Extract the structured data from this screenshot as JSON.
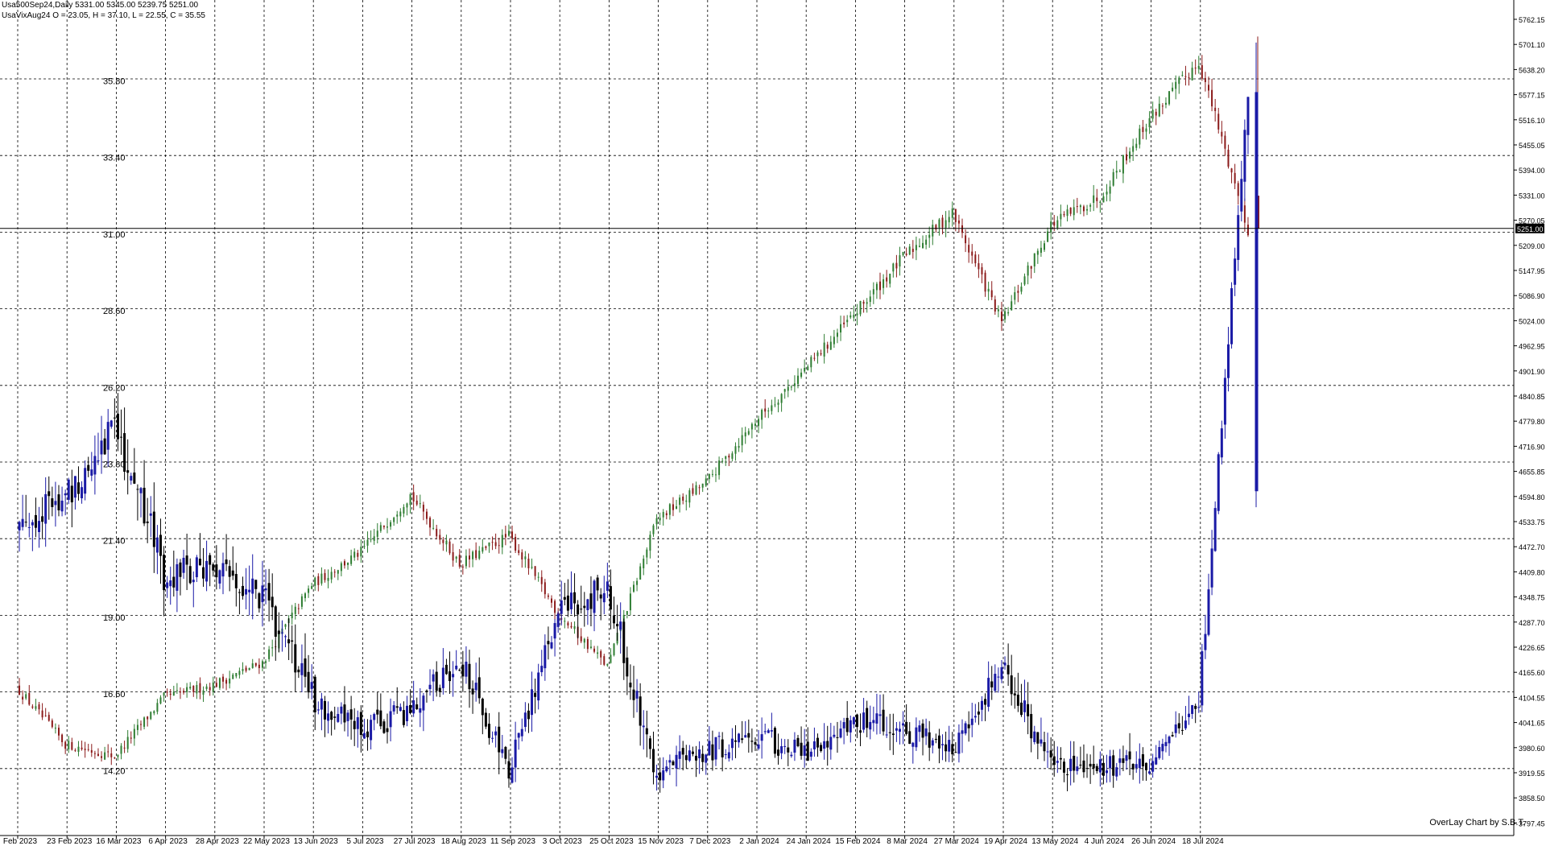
{
  "header": {
    "line1": "Usa500Sep24,Daily  5331.00 5345.00 5239.75 5251.00",
    "line2": "UsaVixAug24 O = 23.05, H = 37.10, L = 22.55, C = 35.55"
  },
  "credit": "OverLay Chart by S.B.T.",
  "colors": {
    "background": "#ffffff",
    "grid": "#000000",
    "spx_up": "#2e7d32",
    "spx_down": "#8b1a1a",
    "vix_up": "#1a1aa6",
    "vix_down": "#000000",
    "price_tag_bg": "#000000",
    "price_tag_text": "#ffffff"
  },
  "chart_data": [
    {
      "type": "candlestick",
      "name": "Usa500Sep24",
      "axis": "right",
      "ylim": [
        3797.45,
        5762.15
      ],
      "ticks": [
        "5762.15",
        "5701.10",
        "5638.20",
        "5577.15",
        "5516.10",
        "5455.05",
        "5394.00",
        "5331.00",
        "5270.05",
        "5209.00",
        "5147.95",
        "5086.90",
        "5024.00",
        "4962.95",
        "4901.90",
        "4840.85",
        "4779.80",
        "4716.90",
        "4655.85",
        "4594.80",
        "4533.75",
        "4472.70",
        "4409.80",
        "4348.75",
        "4287.70",
        "4226.65",
        "4165.60",
        "4104.55",
        "4041.65",
        "3980.60",
        "3919.55",
        "3858.50",
        "3797.45"
      ],
      "current_price": "5251.00",
      "key_points": [
        {
          "date": "Feb 2023",
          "close": 4130
        },
        {
          "date": "23 Feb 2023",
          "close": 3990
        },
        {
          "date": "16 Mar 2023",
          "close": 3960
        },
        {
          "date": "6 Apr 2023",
          "close": 4105
        },
        {
          "date": "28 Apr 2023",
          "close": 4135
        },
        {
          "date": "22 May 2023",
          "close": 4190
        },
        {
          "date": "13 Jun 2023",
          "close": 4380
        },
        {
          "date": "5 Jul 2023",
          "close": 4460
        },
        {
          "date": "27 Jul 2023",
          "close": 4600
        },
        {
          "date": "18 Aug 2023",
          "close": 4430
        },
        {
          "date": "11 Sep 2023",
          "close": 4500
        },
        {
          "date": "3 Oct 2023",
          "close": 4310
        },
        {
          "date": "25 Oct 2023",
          "close": 4180
        },
        {
          "date": "15 Nov 2023",
          "close": 4540
        },
        {
          "date": "7 Dec 2023",
          "close": 4630
        },
        {
          "date": "2 Jan 2024",
          "close": 4780
        },
        {
          "date": "24 Jan 2024",
          "close": 4905
        },
        {
          "date": "15 Feb 2024",
          "close": 5040
        },
        {
          "date": "8 Mar 2024",
          "close": 5180
        },
        {
          "date": "27 Mar 2024",
          "close": 5290
        },
        {
          "date": "19 Apr 2024",
          "close": 5020
        },
        {
          "date": "13 May 2024",
          "close": 5260
        },
        {
          "date": "4 Jun 2024",
          "close": 5330
        },
        {
          "date": "26 Jun 2024",
          "close": 5520
        },
        {
          "date": "18 Jul 2024",
          "close": 5660
        },
        {
          "date": "Aug 2024",
          "close": 5251
        }
      ]
    },
    {
      "type": "candlestick",
      "name": "UsaVixAug24",
      "axis": "left",
      "ylim": [
        11.8,
        38.2
      ],
      "ticks": [
        "35.80",
        "33.40",
        "31.00",
        "28.60",
        "26.20",
        "23.80",
        "21.40",
        "19.00",
        "16.60",
        "14.20"
      ],
      "key_points": [
        {
          "date": "Feb 2023",
          "close": 22.0
        },
        {
          "date": "23 Feb 2023",
          "close": 22.8
        },
        {
          "date": "16 Mar 2023",
          "close": 25.2
        },
        {
          "date": "6 Apr 2023",
          "close": 20.5
        },
        {
          "date": "28 Apr 2023",
          "close": 20.6
        },
        {
          "date": "22 May 2023",
          "close": 19.8
        },
        {
          "date": "13 Jun 2023",
          "close": 16.6
        },
        {
          "date": "5 Jul 2023",
          "close": 15.5
        },
        {
          "date": "27 Jul 2023",
          "close": 16.2
        },
        {
          "date": "18 Aug 2023",
          "close": 17.8
        },
        {
          "date": "11 Sep 2023",
          "close": 14.3
        },
        {
          "date": "3 Oct 2023",
          "close": 19.2
        },
        {
          "date": "25 Oct 2023",
          "close": 20.0
        },
        {
          "date": "15 Nov 2023",
          "close": 14.3
        },
        {
          "date": "7 Dec 2023",
          "close": 14.9
        },
        {
          "date": "2 Jan 2024",
          "close": 15.4
        },
        {
          "date": "24 Jan 2024",
          "close": 14.8
        },
        {
          "date": "15 Feb 2024",
          "close": 15.8
        },
        {
          "date": "8 Mar 2024",
          "close": 15.6
        },
        {
          "date": "27 Mar 2024",
          "close": 15.0
        },
        {
          "date": "19 Apr 2024",
          "close": 17.6
        },
        {
          "date": "13 May 2024",
          "close": 14.3
        },
        {
          "date": "4 Jun 2024",
          "close": 14.4
        },
        {
          "date": "26 Jun 2024",
          "close": 14.6
        },
        {
          "date": "18 Jul 2024",
          "close": 16.4
        },
        {
          "date": "Aug 2024",
          "close": 35.55
        }
      ]
    }
  ],
  "x_axis": {
    "labels": [
      "Feb 2023",
      "23 Feb 2023",
      "16 Mar 2023",
      "6 Apr 2023",
      "28 Apr 2023",
      "22 May 2023",
      "13 Jun 2023",
      "5 Jul 2023",
      "27 Jul 2023",
      "18 Aug 2023",
      "11 Sep 2023",
      "3 Oct 2023",
      "25 Oct 2023",
      "15 Nov 2023",
      "7 Dec 2023",
      "2 Jan 2024",
      "24 Jan 2024",
      "15 Feb 2024",
      "8 Mar 2024",
      "27 Mar 2024",
      "19 Apr 2024",
      "13 May 2024",
      "4 Jun 2024",
      "26 Jun 2024",
      "18 Jul 2024"
    ]
  }
}
